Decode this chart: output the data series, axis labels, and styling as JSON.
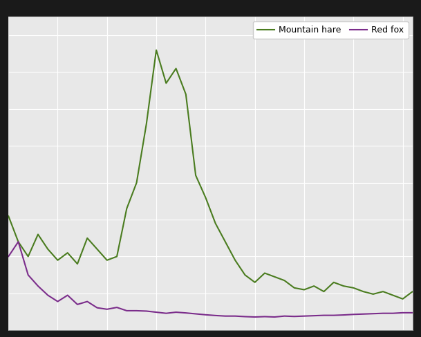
{
  "mountain_hare": [
    3100,
    2400,
    2000,
    2600,
    2200,
    1900,
    2100,
    1800,
    2500,
    2200,
    1900,
    2000,
    3300,
    4000,
    5600,
    7600,
    6700,
    7100,
    6400,
    4200,
    3600,
    2900,
    2400,
    1900,
    1500,
    1300,
    1550,
    1450,
    1350,
    1150,
    1100,
    1200,
    1050,
    1300,
    1200,
    1150,
    1050,
    980,
    1050,
    950,
    850,
    1050
  ],
  "red_fox": [
    2000,
    2400,
    1500,
    1200,
    950,
    780,
    950,
    700,
    780,
    610,
    570,
    620,
    530,
    530,
    520,
    490,
    460,
    490,
    470,
    445,
    420,
    400,
    385,
    385,
    370,
    360,
    370,
    360,
    385,
    375,
    385,
    395,
    405,
    405,
    415,
    430,
    440,
    450,
    460,
    460,
    475,
    475
  ],
  "mountain_hare_color": "#4a7c1f",
  "red_fox_color": "#7b2d8b",
  "plot_background_color": "#e8e8e8",
  "outer_background_color": "#1a1a1a",
  "grid_color": "#ffffff",
  "legend_label_hare": "Mountain hare",
  "legend_label_fox": "Red fox",
  "ylim": [
    0,
    8500
  ],
  "n_points": 42,
  "legend_fontsize": 9,
  "linewidth": 1.5
}
